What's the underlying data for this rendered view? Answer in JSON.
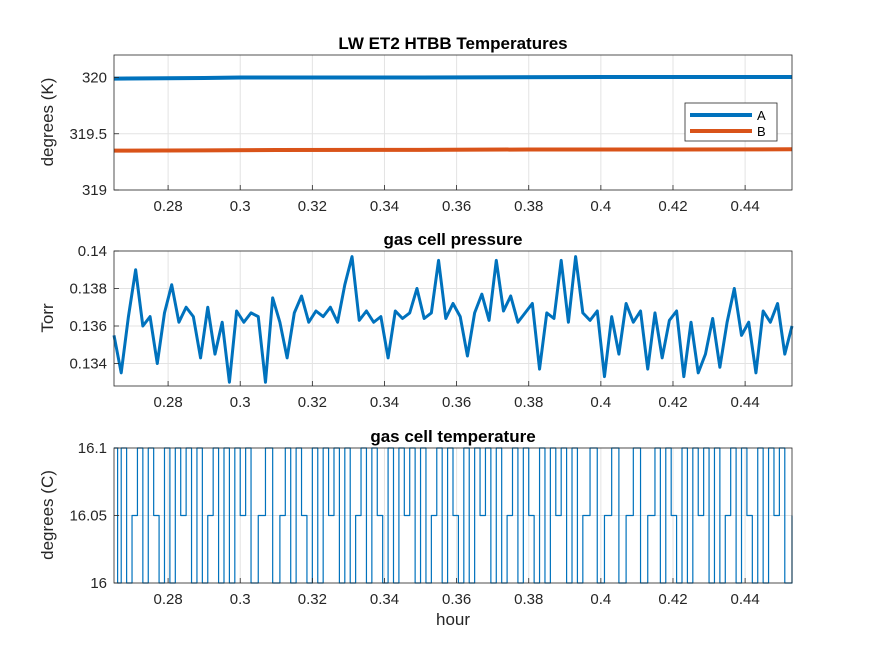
{
  "chart_data": [
    {
      "type": "line",
      "title": "LW ET2 HTBB Temperatures",
      "xlabel": "",
      "ylabel": "degrees (K)",
      "xlim": [
        0.265,
        0.453
      ],
      "ylim": [
        319,
        320.2
      ],
      "xticks": [
        0.28,
        0.3,
        0.32,
        0.34,
        0.36,
        0.38,
        0.4,
        0.42,
        0.44
      ],
      "xtick_labels": [
        "0.28",
        "0.3",
        "0.32",
        "0.34",
        "0.36",
        "0.38",
        "0.4",
        "0.42",
        "0.44"
      ],
      "yticks": [
        319,
        319.5,
        320
      ],
      "ytick_labels": [
        "319",
        "319.5",
        "320"
      ],
      "grid": true,
      "legend": "right",
      "series": [
        {
          "name": "A",
          "color": "#0072BD",
          "x": [
            0.265,
            0.29,
            0.3,
            0.35,
            0.4,
            0.453
          ],
          "values": [
            319.99,
            319.995,
            320.0,
            320.0,
            320.005,
            320.005
          ]
        },
        {
          "name": "B",
          "color": "#D95319",
          "x": [
            0.265,
            0.29,
            0.31,
            0.35,
            0.38,
            0.42,
            0.453
          ],
          "values": [
            319.35,
            319.352,
            319.355,
            319.357,
            319.36,
            319.36,
            319.362
          ]
        }
      ]
    },
    {
      "type": "line",
      "title": "gas cell pressure",
      "xlabel": "",
      "ylabel": "Torr",
      "xlim": [
        0.265,
        0.453
      ],
      "ylim": [
        0.1328,
        0.14
      ],
      "xticks": [
        0.28,
        0.3,
        0.32,
        0.34,
        0.36,
        0.38,
        0.4,
        0.42,
        0.44
      ],
      "xtick_labels": [
        "0.28",
        "0.3",
        "0.32",
        "0.34",
        "0.36",
        "0.38",
        "0.4",
        "0.42",
        "0.44"
      ],
      "yticks": [
        0.134,
        0.136,
        0.138,
        0.14
      ],
      "ytick_labels": [
        "0.134",
        "0.136",
        "0.138",
        "0.14"
      ],
      "grid": true,
      "series": [
        {
          "name": "",
          "color": "#0072BD",
          "x": [
            0.265,
            0.267,
            0.269,
            0.271,
            0.273,
            0.275,
            0.277,
            0.279,
            0.281,
            0.283,
            0.285,
            0.287,
            0.289,
            0.291,
            0.293,
            0.295,
            0.297,
            0.299,
            0.301,
            0.303,
            0.305,
            0.307,
            0.309,
            0.311,
            0.313,
            0.315,
            0.317,
            0.319,
            0.321,
            0.323,
            0.325,
            0.327,
            0.329,
            0.331,
            0.333,
            0.335,
            0.337,
            0.339,
            0.341,
            0.343,
            0.345,
            0.347,
            0.349,
            0.351,
            0.353,
            0.355,
            0.357,
            0.359,
            0.361,
            0.363,
            0.365,
            0.367,
            0.369,
            0.371,
            0.373,
            0.375,
            0.377,
            0.379,
            0.381,
            0.383,
            0.385,
            0.387,
            0.389,
            0.391,
            0.393,
            0.395,
            0.397,
            0.399,
            0.401,
            0.403,
            0.405,
            0.407,
            0.409,
            0.411,
            0.413,
            0.415,
            0.417,
            0.419,
            0.421,
            0.423,
            0.425,
            0.427,
            0.429,
            0.431,
            0.433,
            0.435,
            0.437,
            0.439,
            0.441,
            0.443,
            0.445,
            0.447,
            0.449,
            0.451,
            0.453
          ],
          "values": [
            0.1355,
            0.1335,
            0.1365,
            0.139,
            0.136,
            0.1365,
            0.134,
            0.1367,
            0.1382,
            0.1362,
            0.137,
            0.1365,
            0.1343,
            0.137,
            0.1345,
            0.1362,
            0.133,
            0.1368,
            0.1362,
            0.1367,
            0.1365,
            0.133,
            0.1375,
            0.1362,
            0.1343,
            0.1367,
            0.1376,
            0.1362,
            0.1368,
            0.1365,
            0.137,
            0.1362,
            0.1382,
            0.1397,
            0.1363,
            0.1368,
            0.1362,
            0.1365,
            0.1343,
            0.1368,
            0.1364,
            0.1367,
            0.138,
            0.1364,
            0.1367,
            0.1395,
            0.1364,
            0.1372,
            0.1365,
            0.1344,
            0.1367,
            0.1377,
            0.1363,
            0.1395,
            0.1368,
            0.1376,
            0.1362,
            0.1367,
            0.1372,
            0.1337,
            0.1367,
            0.1364,
            0.1395,
            0.1362,
            0.1397,
            0.1367,
            0.1363,
            0.1368,
            0.1333,
            0.1365,
            0.1345,
            0.1372,
            0.1362,
            0.1368,
            0.1337,
            0.1367,
            0.1343,
            0.1363,
            0.1368,
            0.1333,
            0.1362,
            0.1335,
            0.1345,
            0.1364,
            0.1338,
            0.1362,
            0.138,
            0.1355,
            0.1362,
            0.1335,
            0.1368,
            0.1362,
            0.1372,
            0.1345,
            0.136
          ]
        }
      ]
    },
    {
      "type": "line",
      "title": "gas cell temperature",
      "xlabel": "hour",
      "ylabel": "degrees (C)",
      "xlim": [
        0.265,
        0.453
      ],
      "ylim": [
        16,
        16.1
      ],
      "xticks": [
        0.28,
        0.3,
        0.32,
        0.34,
        0.36,
        0.38,
        0.4,
        0.42,
        0.44
      ],
      "xtick_labels": [
        "0.28",
        "0.3",
        "0.32",
        "0.34",
        "0.36",
        "0.38",
        "0.4",
        "0.42",
        "0.44"
      ],
      "yticks": [
        16,
        16.05,
        16.1
      ],
      "ytick_labels": [
        "16",
        "16.05",
        "16.1"
      ],
      "grid": true,
      "series": [
        {
          "name": "",
          "color": "#0072BD",
          "x": [
            0.265,
            0.266,
            0.267,
            0.2685,
            0.27,
            0.2715,
            0.273,
            0.2745,
            0.276,
            0.2775,
            0.279,
            0.2805,
            0.282,
            0.2835,
            0.285,
            0.2865,
            0.288,
            0.2895,
            0.291,
            0.2925,
            0.294,
            0.2955,
            0.297,
            0.2985,
            0.3,
            0.3015,
            0.303,
            0.305,
            0.307,
            0.309,
            0.311,
            0.3125,
            0.314,
            0.3155,
            0.317,
            0.3185,
            0.32,
            0.3215,
            0.323,
            0.3245,
            0.326,
            0.3275,
            0.329,
            0.3305,
            0.332,
            0.3335,
            0.335,
            0.3365,
            0.338,
            0.3395,
            0.341,
            0.3425,
            0.344,
            0.3455,
            0.347,
            0.3485,
            0.35,
            0.3515,
            0.353,
            0.3545,
            0.356,
            0.3575,
            0.359,
            0.3605,
            0.362,
            0.3635,
            0.365,
            0.3665,
            0.368,
            0.3695,
            0.371,
            0.3725,
            0.374,
            0.3755,
            0.377,
            0.3785,
            0.38,
            0.3815,
            0.383,
            0.3845,
            0.386,
            0.3875,
            0.389,
            0.3905,
            0.392,
            0.3935,
            0.395,
            0.397,
            0.399,
            0.401,
            0.403,
            0.405,
            0.407,
            0.409,
            0.411,
            0.413,
            0.415,
            0.4165,
            0.418,
            0.4195,
            0.421,
            0.4225,
            0.424,
            0.4255,
            0.427,
            0.4285,
            0.43,
            0.4315,
            0.433,
            0.4345,
            0.436,
            0.4375,
            0.439,
            0.4405,
            0.442,
            0.4435,
            0.445,
            0.4465,
            0.448,
            0.4495,
            0.451,
            0.453
          ],
          "values": [
            16.1,
            16,
            16.1,
            16,
            16.05,
            16.1,
            16,
            16.1,
            16.05,
            16,
            16.1,
            16,
            16.1,
            16.05,
            16.1,
            16,
            16.1,
            16,
            16.05,
            16.1,
            16,
            16.1,
            16,
            16.1,
            16.05,
            16.1,
            16,
            16.05,
            16.1,
            16,
            16.05,
            16.1,
            16,
            16.1,
            16.05,
            16,
            16.1,
            16,
            16.1,
            16.05,
            16.1,
            16,
            16.1,
            16,
            16.05,
            16.1,
            16,
            16.1,
            16.05,
            16,
            16.1,
            16,
            16.1,
            16.05,
            16.1,
            16,
            16.1,
            16,
            16.05,
            16.1,
            16,
            16.1,
            16.05,
            16,
            16.1,
            16,
            16.1,
            16.05,
            16.1,
            16,
            16.1,
            16,
            16.05,
            16.1,
            16,
            16.1,
            16.05,
            16,
            16.1,
            16,
            16.1,
            16.05,
            16.1,
            16,
            16.1,
            16,
            16.05,
            16.1,
            16,
            16.05,
            16.1,
            16,
            16.05,
            16.1,
            16,
            16.05,
            16.1,
            16,
            16.1,
            16.05,
            16,
            16.1,
            16,
            16.1,
            16.05,
            16.1,
            16,
            16.1,
            16,
            16.05,
            16.1,
            16,
            16.1,
            16.05,
            16,
            16.1,
            16,
            16.1,
            16.05,
            16.1,
            16,
            16.05
          ]
        }
      ]
    }
  ]
}
